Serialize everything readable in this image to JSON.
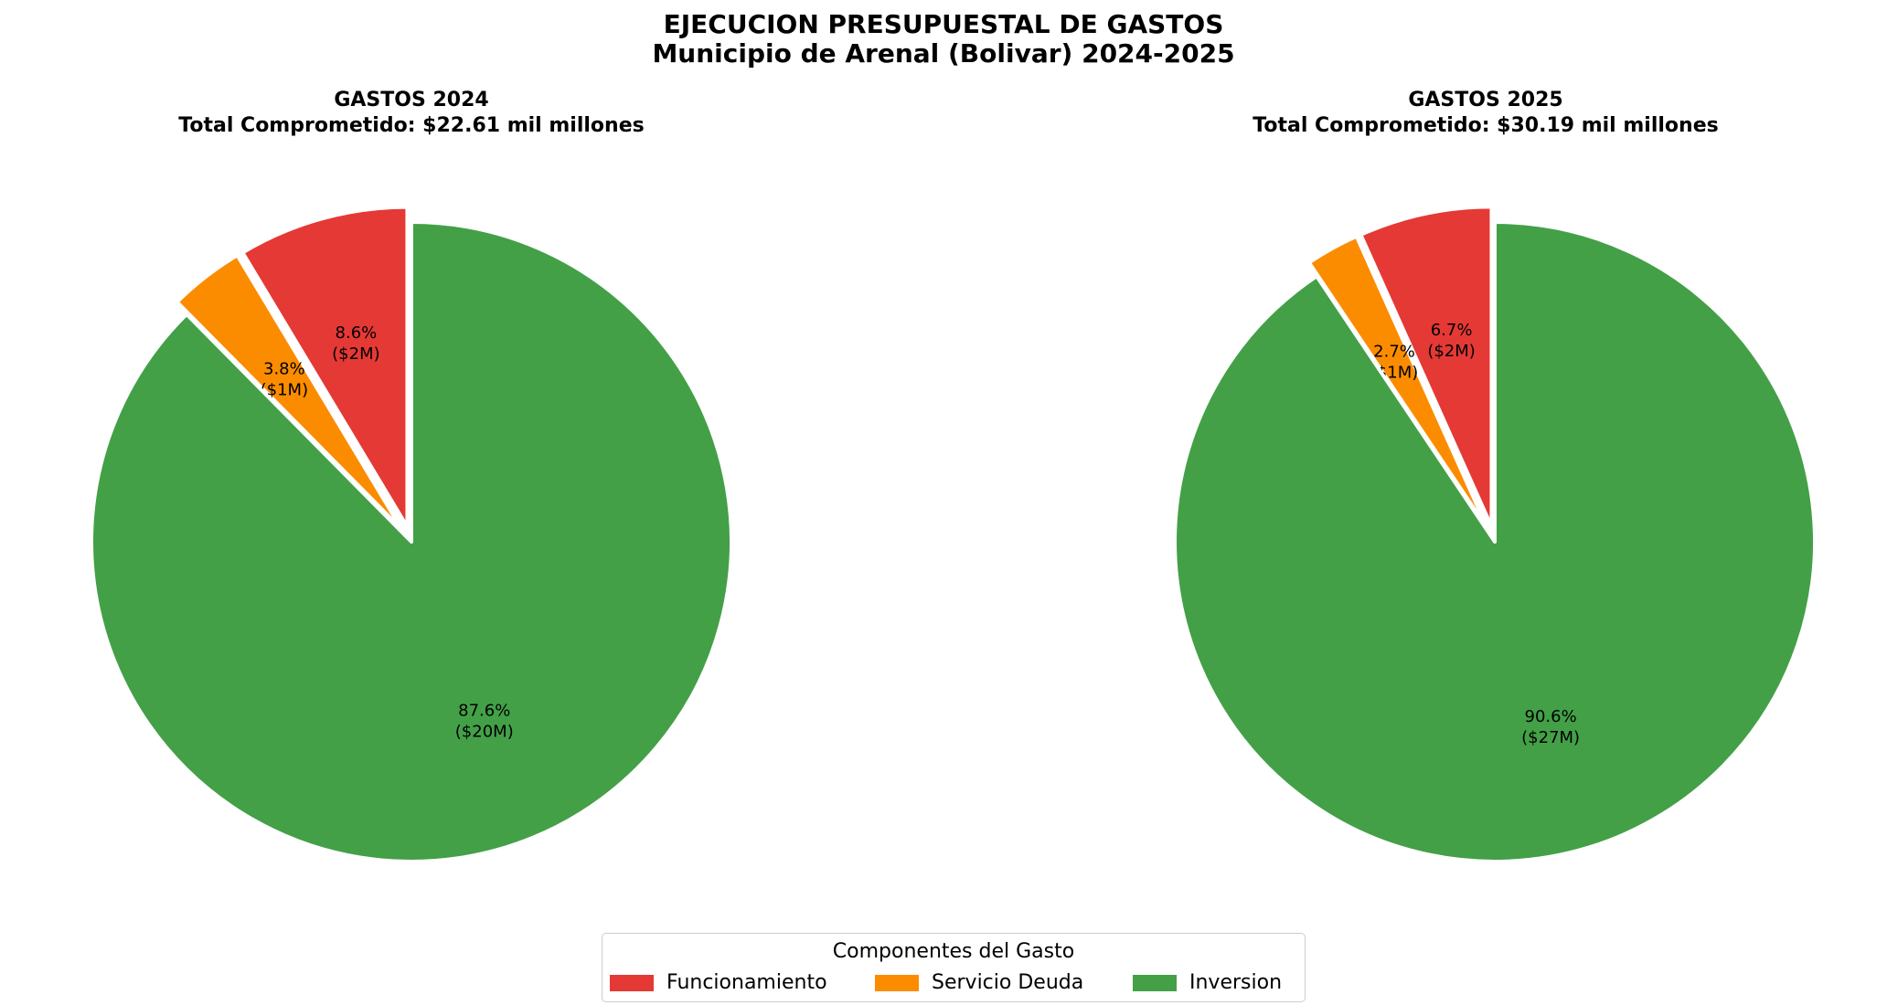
{
  "figure": {
    "title_line1": "EJECUCION PRESUPUESTAL DE GASTOS",
    "title_line2": "Municipio de Arenal (Bolivar) 2024-2025"
  },
  "legend": {
    "title": "Componentes del Gasto",
    "items": [
      {
        "label": "Funcionamiento",
        "color": "#e53935"
      },
      {
        "label": "Servicio Deuda",
        "color": "#fb8c00"
      },
      {
        "label": "Inversion",
        "color": "#43a047"
      }
    ]
  },
  "chart_data": [
    {
      "type": "pie",
      "title": "GASTOS 2024",
      "subtitle": "Total Comprometido: $22.61 mil millones",
      "categories": [
        "Funcionamiento",
        "Servicio Deuda",
        "Inversion"
      ],
      "values": [
        8.6,
        3.8,
        87.6
      ],
      "value_labels": [
        "($2M)",
        "($1M)",
        "($20M)"
      ],
      "percent_labels": [
        "8.6%",
        "3.8%",
        "87.6%"
      ],
      "colors": [
        "#e53935",
        "#fb8c00",
        "#43a047"
      ],
      "start_angle_deg": 90,
      "direction": "counterclockwise",
      "exploded": [
        true,
        true,
        false
      ]
    },
    {
      "type": "pie",
      "title": "GASTOS 2025",
      "subtitle": "Total Comprometido: $30.19 mil millones",
      "categories": [
        "Funcionamiento",
        "Servicio Deuda",
        "Inversion"
      ],
      "values": [
        6.7,
        2.7,
        90.6
      ],
      "value_labels": [
        "($2M)",
        "($1M)",
        "($27M)"
      ],
      "percent_labels": [
        "6.7%",
        "2.7%",
        "90.6%"
      ],
      "colors": [
        "#e53935",
        "#fb8c00",
        "#43a047"
      ],
      "start_angle_deg": 90,
      "direction": "counterclockwise",
      "exploded": [
        true,
        true,
        false
      ]
    }
  ]
}
